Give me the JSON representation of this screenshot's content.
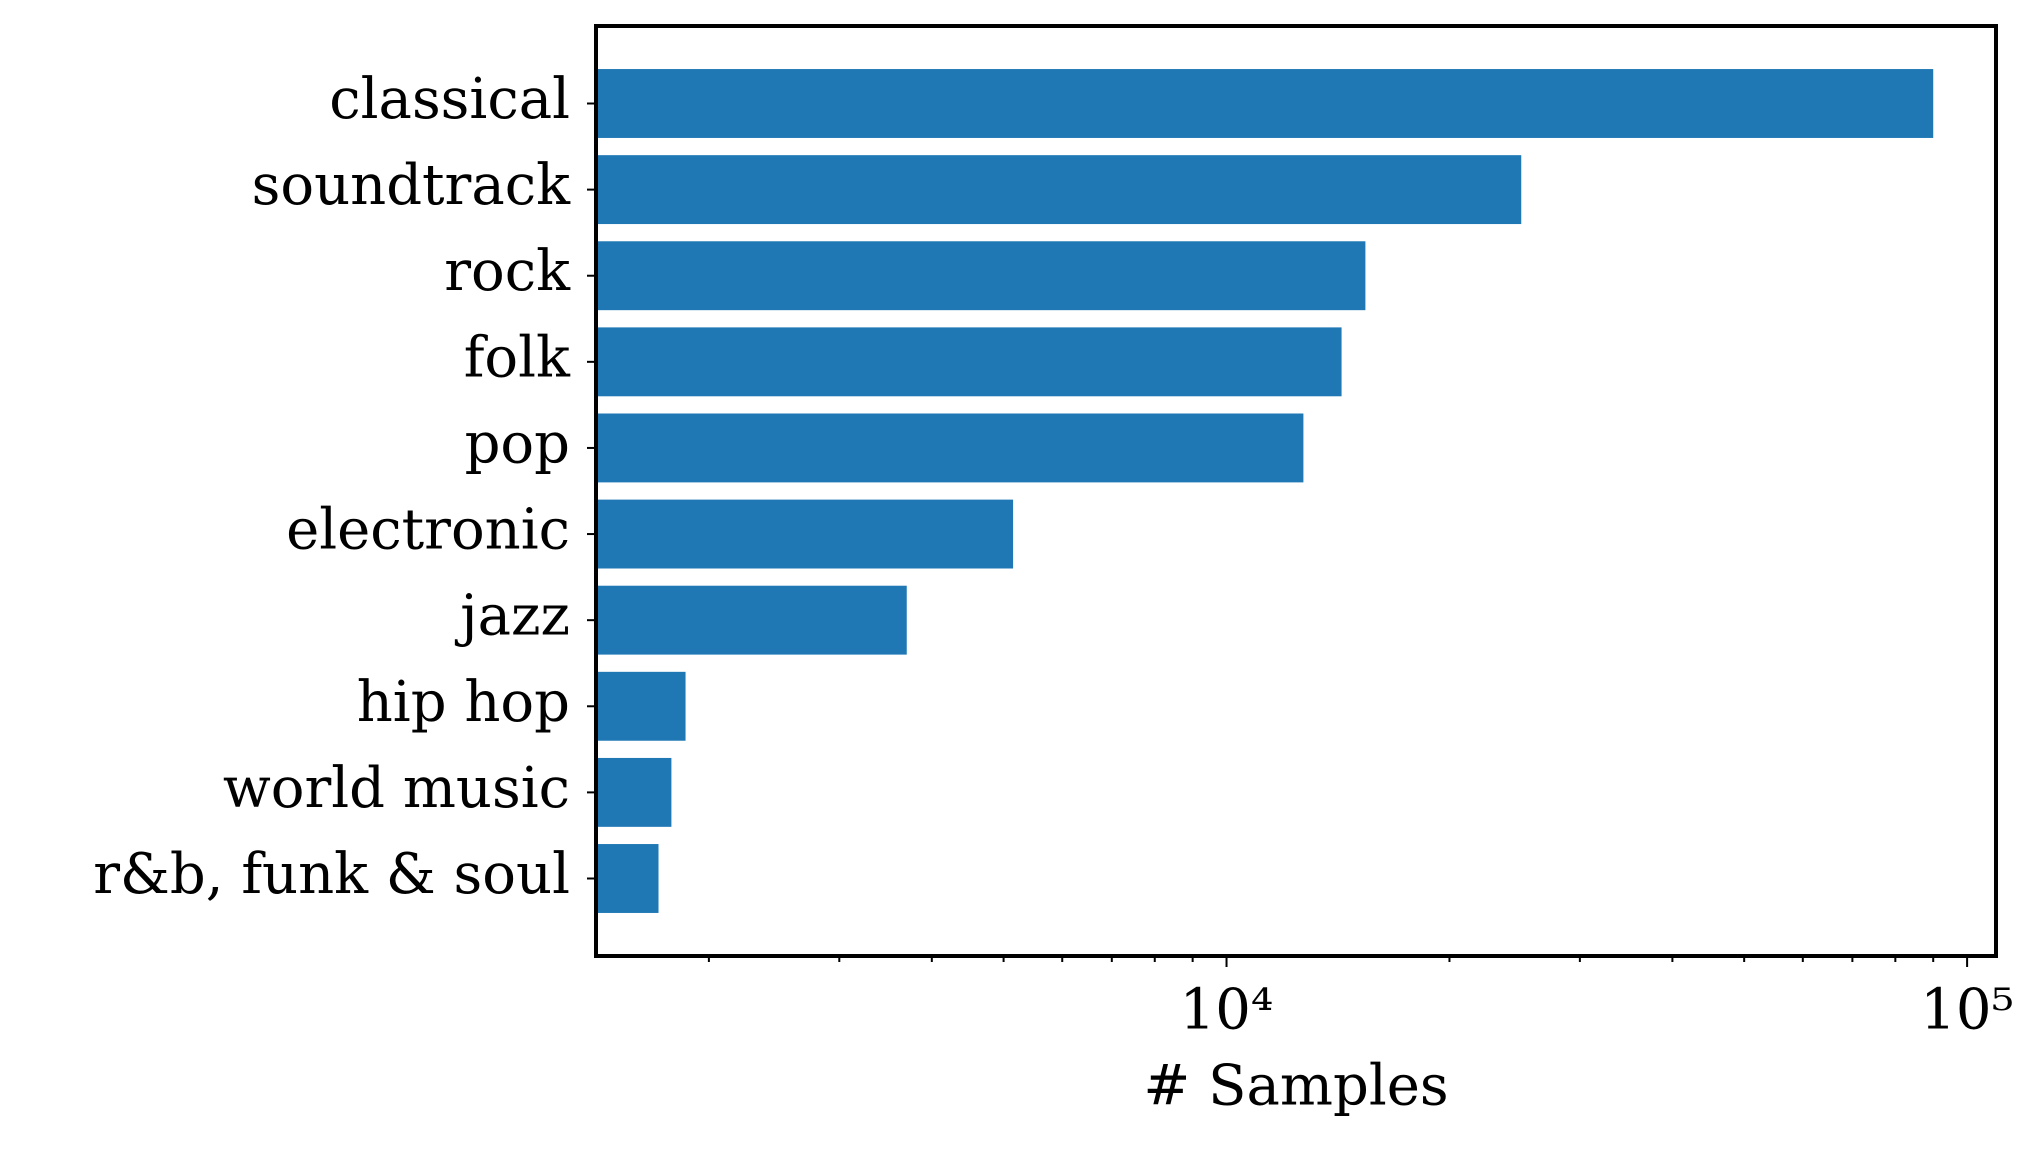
{
  "chart_data": {
    "type": "barh",
    "xlabel": "# Samples",
    "categories": [
      "classical",
      "soundtrack",
      "rock",
      "folk",
      "pop",
      "electronic",
      "jazz",
      "hip hop",
      "world music",
      "r&b, funk & soul"
    ],
    "values": [
      90000,
      25000,
      15400,
      14300,
      12700,
      5150,
      3700,
      1860,
      1780,
      1710
    ],
    "color": "#1f77b4",
    "xscale": "log",
    "xlim": [
      1408,
      109400
    ],
    "xticks": [
      {
        "value": 10000,
        "label": "10⁴"
      },
      {
        "value": 100000,
        "label": "10⁵"
      }
    ],
    "xminorticks": [
      2000,
      3000,
      4000,
      5000,
      6000,
      7000,
      8000,
      9000,
      20000,
      30000,
      40000,
      50000,
      60000,
      70000,
      80000,
      90000
    ],
    "grid": false
  }
}
